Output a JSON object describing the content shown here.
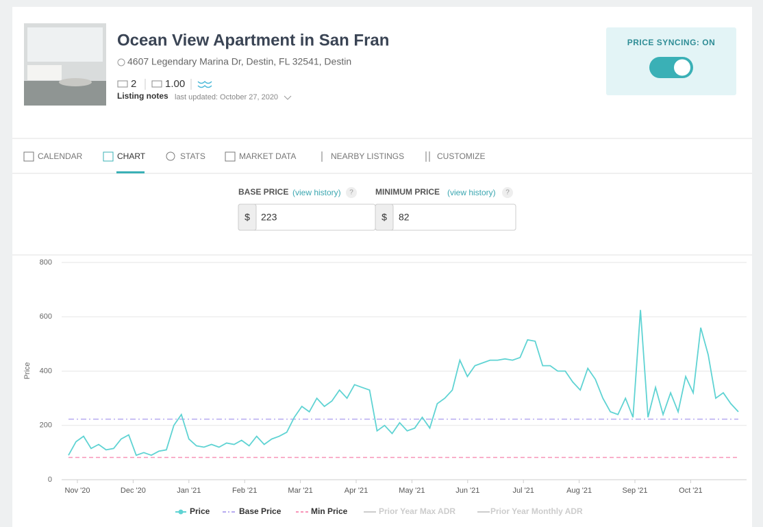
{
  "header": {
    "title": "Ocean View Apartment in San Fran",
    "address": "4607 Legendary Marina Dr, Destin, FL 32541, Destin",
    "beds": "2",
    "baths": "1.00",
    "notes_label": "Listing notes",
    "last_updated": "last updated: October 27, 2020",
    "sync_label": "PRICE SYNCING: ON"
  },
  "tabs": [
    "CALENDAR",
    "CHART",
    "STATS",
    "MARKET DATA",
    "NEARBY LISTINGS",
    "CUSTOMIZE"
  ],
  "inputs": {
    "base_label": "BASE PRICE",
    "min_label": "MINIMUM PRICE",
    "history_link": "(view history)",
    "help": "?",
    "currency": "$"
  },
  "chart_data": {
    "type": "line",
    "y_label": "Price",
    "x_labels": [
      "Nov '20",
      "Dec '20",
      "Jan '21",
      "Feb '21",
      "Mar '21",
      "Apr '21",
      "May '21",
      "Jun '21",
      "Jul '21",
      "Aug '21",
      "Sep '21",
      "Oct '21"
    ],
    "ylim": [
      0,
      800
    ],
    "yticks": [
      0,
      200,
      400,
      600,
      800
    ],
    "grid": true,
    "series": [
      {
        "name": "Price",
        "color": "#5fd3d3",
        "values": [
          90,
          140,
          160,
          115,
          130,
          110,
          115,
          150,
          165,
          90,
          100,
          90,
          105,
          110,
          200,
          240,
          150,
          125,
          120,
          130,
          120,
          135,
          130,
          145,
          125,
          160,
          130,
          150,
          160,
          175,
          230,
          270,
          250,
          300,
          270,
          290,
          330,
          300,
          350,
          340,
          330,
          180,
          200,
          170,
          210,
          180,
          190,
          230,
          190,
          280,
          300,
          330,
          440,
          380,
          420,
          430,
          440,
          440,
          445,
          440,
          450,
          515,
          510,
          420,
          420,
          400,
          400,
          360,
          330,
          410,
          370,
          300,
          250,
          240,
          300,
          230,
          625,
          230,
          340,
          240,
          320,
          250,
          380,
          320,
          560,
          460,
          300,
          320,
          280,
          250
        ]
      },
      {
        "name": "Base Price",
        "color": "#b6aaf0",
        "value": 223
      },
      {
        "name": "Min Price",
        "color": "#f794b8",
        "value": 82
      }
    ],
    "legend_hidden": [
      "Prior Year Max ADR",
      "Prior Year Monthly ADR"
    ]
  }
}
